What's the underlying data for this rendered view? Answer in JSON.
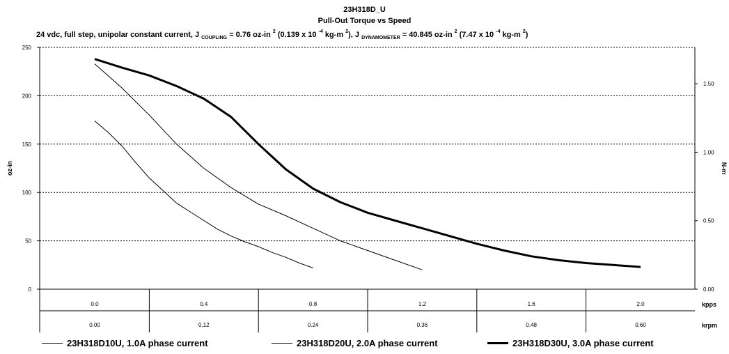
{
  "chart_data": {
    "type": "line",
    "title": "23H318D_U",
    "subtitle": "Pull-Out Torque vs Speed",
    "subheader": {
      "p1": "24 vdc, full step, unipolar constant current, J",
      "coupling_sub": "COUPLING",
      "p2": "= 0.76 oz-in",
      "sup_a": "2",
      "p3": "(0.139 x 10",
      "sup_b": "-4",
      "p4": "kg-m",
      "sup_c": "2",
      "p5": "), J",
      "dyn_sub": "DYNAMOMETER",
      "p6": "= 40.845 oz-in",
      "sup_d": "2",
      "p7": "(7.47 x 10",
      "sup_e": "-4",
      "p8": "kg-m",
      "sup_f": "2",
      "p9": ")"
    },
    "ylabel": "oz-in",
    "y2label": "N-m",
    "ylim": [
      0,
      250
    ],
    "y_ticks": [
      "0",
      "50",
      "100",
      "150",
      "200",
      "250"
    ],
    "y2_ticks": [
      "0.00",
      "0.50",
      "1.00",
      "1.50"
    ],
    "y2_tick_values": [
      0,
      0.5,
      1.0,
      1.5
    ],
    "nm_per_ozin": 0.00706155,
    "xlim": [
      0,
      2.0
    ],
    "grid": true,
    "x_axis_rows": [
      {
        "unit": "kpps",
        "ticks": [
          "0.0",
          "0.4",
          "0.8",
          "1.2",
          "1.6",
          "2.0"
        ]
      },
      {
        "unit": "krpm",
        "ticks": [
          "0.00",
          "0.12",
          "0.24",
          "0.36",
          "0.48",
          "0.60"
        ]
      }
    ],
    "series": [
      {
        "name": "23H318D10U, 1.0A phase current",
        "stroke": 1,
        "x": [
          0,
          0.05,
          0.1,
          0.15,
          0.2,
          0.25,
          0.3,
          0.35,
          0.4,
          0.45,
          0.5,
          0.55,
          0.6,
          0.65,
          0.7,
          0.75,
          0.8
        ],
        "y": [
          174,
          162,
          148,
          131,
          115,
          102,
          89,
          80,
          71,
          62,
          55,
          49,
          44,
          38,
          33,
          27,
          22
        ]
      },
      {
        "name": "23H318D20U, 2.0A phase current",
        "stroke": 1,
        "x": [
          0,
          0.1,
          0.2,
          0.3,
          0.4,
          0.5,
          0.6,
          0.7,
          0.8,
          0.9,
          1.0,
          1.1,
          1.2
        ],
        "y": [
          233,
          208,
          180,
          150,
          125,
          105,
          88,
          76,
          63,
          50,
          40,
          30,
          20
        ]
      },
      {
        "name": "23H318D30U, 3.0A phase current",
        "stroke": 3,
        "x": [
          0,
          0.1,
          0.2,
          0.3,
          0.4,
          0.5,
          0.6,
          0.7,
          0.8,
          0.9,
          1.0,
          1.1,
          1.2,
          1.3,
          1.4,
          1.5,
          1.6,
          1.7,
          1.8,
          1.9,
          2.0
        ],
        "y": [
          238,
          229,
          221,
          210,
          197,
          178,
          150,
          124,
          104,
          90,
          79,
          71,
          63,
          55,
          47,
          40,
          34,
          30,
          27,
          25,
          23
        ]
      }
    ],
    "legend_position": "bottom"
  }
}
